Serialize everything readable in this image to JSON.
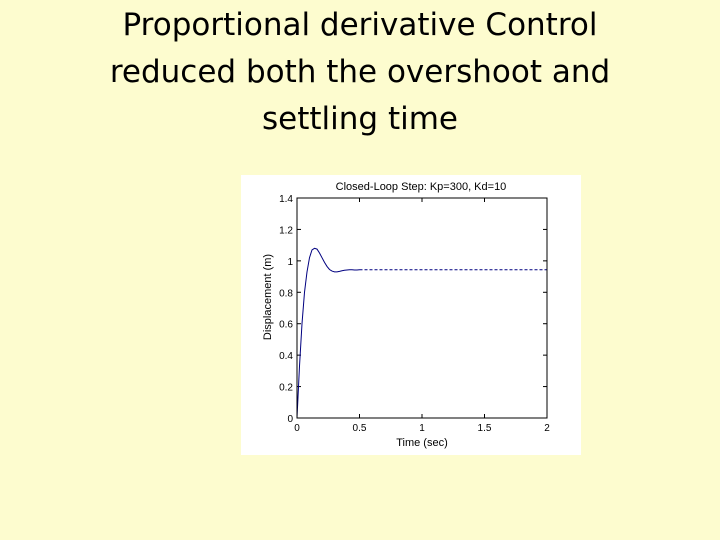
{
  "slide": {
    "title_lines": [
      "Proportional derivative Control",
      "reduced both the overshoot and",
      "settling time"
    ]
  },
  "chart_data": {
    "type": "line",
    "title": "Closed-Loop Step: Kp=300, Kd=10",
    "xlabel": "Time (sec)",
    "ylabel": "Displacement (m)",
    "xlim": [
      0,
      2
    ],
    "ylim": [
      0,
      1.4
    ],
    "xticks": [
      0,
      0.5,
      1,
      1.5,
      2
    ],
    "xtick_labels": [
      "0",
      "0.5",
      "1",
      "1.5",
      "2"
    ],
    "yticks": [
      0,
      0.2,
      0.4,
      0.6,
      0.8,
      1,
      1.2,
      1.4
    ],
    "ytick_labels": [
      "0",
      "0.2",
      "0.4",
      "0.6",
      "0.8",
      "1",
      "1.2",
      "1.4"
    ],
    "grid": false,
    "series": [
      {
        "color": "#000080",
        "x": [
          0,
          0.02,
          0.04,
          0.06,
          0.08,
          0.1,
          0.12,
          0.14,
          0.16,
          0.18,
          0.2,
          0.22,
          0.24,
          0.26,
          0.28,
          0.3,
          0.32,
          0.34,
          0.36,
          0.38,
          0.4,
          0.42,
          0.44,
          0.46,
          0.48,
          0.5
        ],
        "y": [
          0,
          0.33,
          0.6,
          0.8,
          0.93,
          1.02,
          1.07,
          1.08,
          1.075,
          1.05,
          1.02,
          0.99,
          0.965,
          0.945,
          0.935,
          0.93,
          0.93,
          0.933,
          0.937,
          0.94,
          0.942,
          0.943,
          0.943,
          0.942,
          0.942,
          0.943
        ]
      },
      {
        "color": "#000080",
        "dashed": true,
        "x": [
          0.5,
          2
        ],
        "y": [
          0.943,
          0.943
        ]
      }
    ]
  }
}
